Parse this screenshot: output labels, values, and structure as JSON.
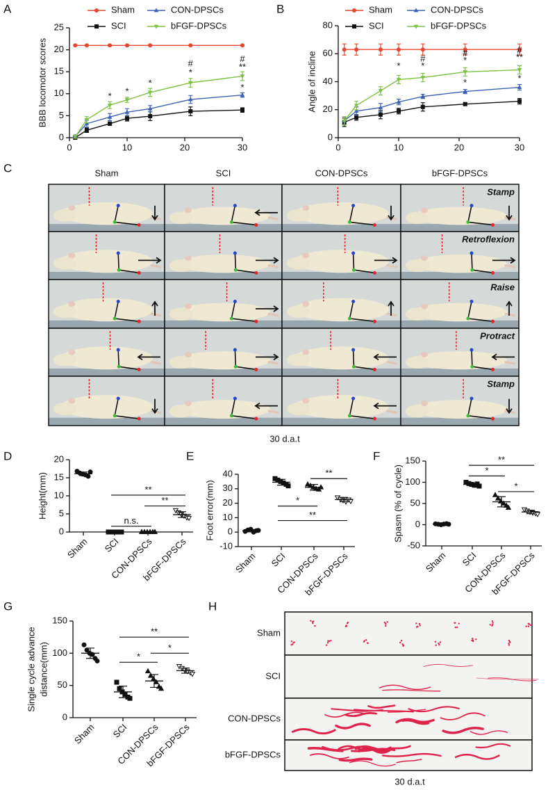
{
  "chart_data": [
    {
      "type": "line",
      "label": "A",
      "ylabel": "BBB locomotor scores",
      "x": [
        1,
        3,
        7,
        10,
        14,
        21,
        30
      ],
      "xlim": [
        0,
        30
      ],
      "xticks": [
        0,
        10,
        20,
        30
      ],
      "ylim": [
        0,
        25
      ],
      "yticks": [
        0,
        5,
        10,
        15,
        20,
        25
      ],
      "series": [
        {
          "name": "Sham",
          "color": "#e8472f",
          "marker": "circle",
          "values": [
            21,
            21,
            21,
            21,
            21,
            21,
            21
          ],
          "errors": [
            0.1,
            0.1,
            0.1,
            0.1,
            0.1,
            0.1,
            0.1
          ]
        },
        {
          "name": "SCI",
          "color": "#111111",
          "marker": "square",
          "values": [
            0,
            1.7,
            3.2,
            4.4,
            4.9,
            6.0,
            6.3
          ],
          "errors": [
            0.3,
            0.5,
            0.4,
            0.6,
            1.0,
            1.0,
            0.5
          ]
        },
        {
          "name": "CON-DPSCs",
          "color": "#3d62b5",
          "marker": "triangle",
          "values": [
            0.3,
            3.2,
            4.7,
            5.8,
            6.6,
            8.7,
            9.7
          ],
          "errors": [
            0.3,
            0.8,
            0.8,
            0.8,
            0.7,
            0.9,
            0.5
          ]
        },
        {
          "name": "bFGF-DPSCs",
          "color": "#7dc242",
          "marker": "triangle-down",
          "values": [
            0.2,
            4.1,
            7.4,
            8.6,
            10.3,
            12.5,
            14.0
          ],
          "errors": [
            0.3,
            0.7,
            0.8,
            0.6,
            0.9,
            1.0,
            1.0
          ]
        }
      ],
      "annotations": [
        {
          "text": "*",
          "x": 7,
          "y": 9.3
        },
        {
          "text": "*",
          "x": 10,
          "y": 10.4
        },
        {
          "text": "*",
          "x": 14,
          "y": 12.3
        },
        {
          "text": "#",
          "x": 21,
          "y": 16.8
        },
        {
          "text": "*",
          "x": 21,
          "y": 14.7
        },
        {
          "text": "#",
          "x": 30,
          "y": 17.8
        },
        {
          "text": "**",
          "x": 30,
          "y": 16.0
        },
        {
          "text": "*",
          "x": 30,
          "y": 11.3
        }
      ]
    },
    {
      "type": "line",
      "label": "B",
      "ylabel": "Angle of incline",
      "x": [
        1,
        3,
        7,
        10,
        14,
        21,
        30
      ],
      "xlim": [
        0,
        30
      ],
      "xticks": [
        0,
        10,
        20,
        30
      ],
      "ylim": [
        0,
        80
      ],
      "yticks": [
        0,
        20,
        40,
        60,
        80
      ],
      "series": [
        {
          "name": "Sham",
          "color": "#e8472f",
          "marker": "circle",
          "values": [
            63,
            63,
            63,
            63,
            63,
            63,
            63
          ],
          "errors": [
            4,
            4,
            4,
            4,
            4,
            4,
            4
          ]
        },
        {
          "name": "SCI",
          "color": "#111111",
          "marker": "square",
          "values": [
            11,
            14.5,
            16.5,
            19,
            22,
            24,
            26
          ],
          "errors": [
            3,
            2,
            3,
            2,
            3,
            1,
            2
          ]
        },
        {
          "name": "CON-DPSCs",
          "color": "#3d62b5",
          "marker": "triangle",
          "values": [
            12,
            19,
            21.5,
            25.5,
            29.5,
            33,
            36
          ],
          "errors": [
            3,
            3,
            3,
            2,
            1.5,
            1.5,
            2
          ]
        },
        {
          "name": "bFGF-DPSCs",
          "color": "#7dc242",
          "marker": "triangle-down",
          "values": [
            12,
            23,
            33.5,
            41.5,
            43,
            47,
            48.5
          ],
          "errors": [
            3,
            3,
            3,
            3,
            3,
            3,
            3
          ]
        }
      ],
      "annotations": [
        {
          "text": "*",
          "x": 10,
          "y": 51
        },
        {
          "text": "#",
          "x": 14,
          "y": 56
        },
        {
          "text": "*",
          "x": 14,
          "y": 51
        },
        {
          "text": "#",
          "x": 21,
          "y": 60
        },
        {
          "text": "*",
          "x": 21,
          "y": 55
        },
        {
          "text": "*",
          "x": 21,
          "y": 39
        },
        {
          "text": "#",
          "x": 30,
          "y": 62
        },
        {
          "text": "**",
          "x": 30,
          "y": 57
        },
        {
          "text": "*",
          "x": 30,
          "y": 42
        }
      ]
    },
    {
      "type": "photo-grid",
      "label": "C",
      "columns": [
        "Sham",
        "SCI",
        "CON-DPSCs",
        "bFGF-DPSCs"
      ],
      "rows": [
        "Stamp",
        "Retroflexion",
        "Raise",
        "Protract",
        "Stamp"
      ],
      "caption": "30 d.a.t"
    },
    {
      "type": "dotplot",
      "label": "D",
      "ylabel": "Height(mm)",
      "categories": [
        "Sham",
        "SCI",
        "CON-DPSCs",
        "bFGF-DPSCs"
      ],
      "markers": [
        "circle",
        "square",
        "triangle",
        "triangle-down"
      ],
      "color": "#111111",
      "ylim": [
        0,
        20
      ],
      "yticks": [
        0,
        5,
        10,
        15,
        20
      ],
      "points": [
        [
          16.8,
          16.3,
          16.0,
          15.8,
          15.4,
          16.6
        ],
        [
          0,
          0,
          0,
          0,
          0,
          0
        ],
        [
          0,
          0,
          0,
          0,
          0,
          0
        ],
        [
          6.0,
          5.4,
          4.9,
          4.5,
          4.0,
          3.9
        ]
      ],
      "means": [
        16.1,
        0,
        0,
        4.8
      ],
      "sd": [
        0.5,
        0,
        0,
        0.8
      ],
      "brackets": [
        {
          "from": 1,
          "to": 3,
          "y": 10.2,
          "label": "**"
        },
        {
          "from": 2,
          "to": 3,
          "y": 7.2,
          "label": "**"
        },
        {
          "from": 1,
          "to": 2,
          "y": 1.6,
          "label": "n.s."
        }
      ]
    },
    {
      "type": "dotplot",
      "label": "E",
      "ylabel": "Foot error(mm)",
      "categories": [
        "Sham",
        "SCI",
        "CON-DPSCs",
        "bFGF-DPSCs"
      ],
      "markers": [
        "circle",
        "square",
        "triangle",
        "triangle-down"
      ],
      "color": "#111111",
      "ylim": [
        -10,
        40
      ],
      "yticks": [
        -10,
        0,
        10,
        20,
        30,
        40
      ],
      "points": [
        [
          0.5,
          1.5,
          2.0,
          0,
          1.0,
          1.2
        ],
        [
          37,
          36,
          35,
          34,
          33,
          32
        ],
        [
          33,
          32,
          31,
          30,
          29.5,
          31
        ],
        [
          24,
          23,
          22,
          21,
          22.5,
          21.5
        ]
      ],
      "means": [
        1,
        34.5,
        31,
        22.5
      ],
      "sd": [
        0.8,
        2,
        2,
        1.5
      ],
      "brackets": [
        {
          "from": 2,
          "to": 3,
          "y": 37,
          "label": "**"
        },
        {
          "from": 1,
          "to": 2,
          "y": 18,
          "label": "*"
        },
        {
          "from": 1,
          "to": 3,
          "y": 8,
          "label": "**"
        }
      ]
    },
    {
      "type": "dotplot",
      "label": "F",
      "ylabel": "Spasm (% of cycle)",
      "categories": [
        "Sham",
        "SCI",
        "CON-DPSCs",
        "bFGF-DPSCs"
      ],
      "markers": [
        "circle",
        "square",
        "triangle",
        "triangle-down"
      ],
      "color": "#111111",
      "ylim": [
        -50,
        150
      ],
      "yticks": [
        -50,
        0,
        50,
        100,
        150
      ],
      "points": [
        [
          2,
          1,
          0,
          1.5,
          2.5,
          1
        ],
        [
          100,
          97,
          95,
          93,
          96,
          91
        ],
        [
          70,
          62,
          55,
          50,
          45,
          40
        ],
        [
          36,
          33,
          30,
          28,
          27,
          25
        ]
      ],
      "means": [
        1.3,
        95,
        54,
        30
      ],
      "sd": [
        1,
        3,
        12,
        4
      ],
      "brackets": [
        {
          "from": 1,
          "to": 3,
          "y": 140,
          "label": "**"
        },
        {
          "from": 1,
          "to": 2,
          "y": 115,
          "label": "*"
        },
        {
          "from": 2,
          "to": 3,
          "y": 78,
          "label": "*"
        }
      ]
    },
    {
      "type": "dotplot",
      "label": "G",
      "ylabel": [
        "Single cycle advance",
        "distance(mm)"
      ],
      "categories": [
        "Sham",
        "SCI",
        "CON-DPSCs",
        "bFGF-DPSCs"
      ],
      "markers": [
        "circle",
        "square",
        "triangle",
        "triangle-down"
      ],
      "color": "#111111",
      "ylim": [
        0,
        150
      ],
      "yticks": [
        0,
        50,
        100,
        150
      ],
      "points": [
        [
          113,
          105,
          100,
          98,
          92,
          88
        ],
        [
          55,
          45,
          40,
          36,
          32,
          30
        ],
        [
          72,
          65,
          60,
          55,
          48,
          45
        ],
        [
          80,
          77,
          74,
          72,
          70,
          68
        ]
      ],
      "means": [
        100,
        40,
        57,
        73
      ],
      "sd": [
        8,
        9,
        10,
        4
      ],
      "brackets": [
        {
          "from": 1,
          "to": 3,
          "y": 125,
          "label": "**"
        },
        {
          "from": 1,
          "to": 2,
          "y": 86,
          "label": "*"
        },
        {
          "from": 2,
          "to": 3,
          "y": 100,
          "label": "*"
        }
      ]
    },
    {
      "type": "photo-strips",
      "label": "H",
      "rows": [
        "Sham",
        "SCI",
        "CON-DPSCs",
        "bFGF-DPSCs"
      ],
      "caption": "30 d.a.t"
    }
  ]
}
